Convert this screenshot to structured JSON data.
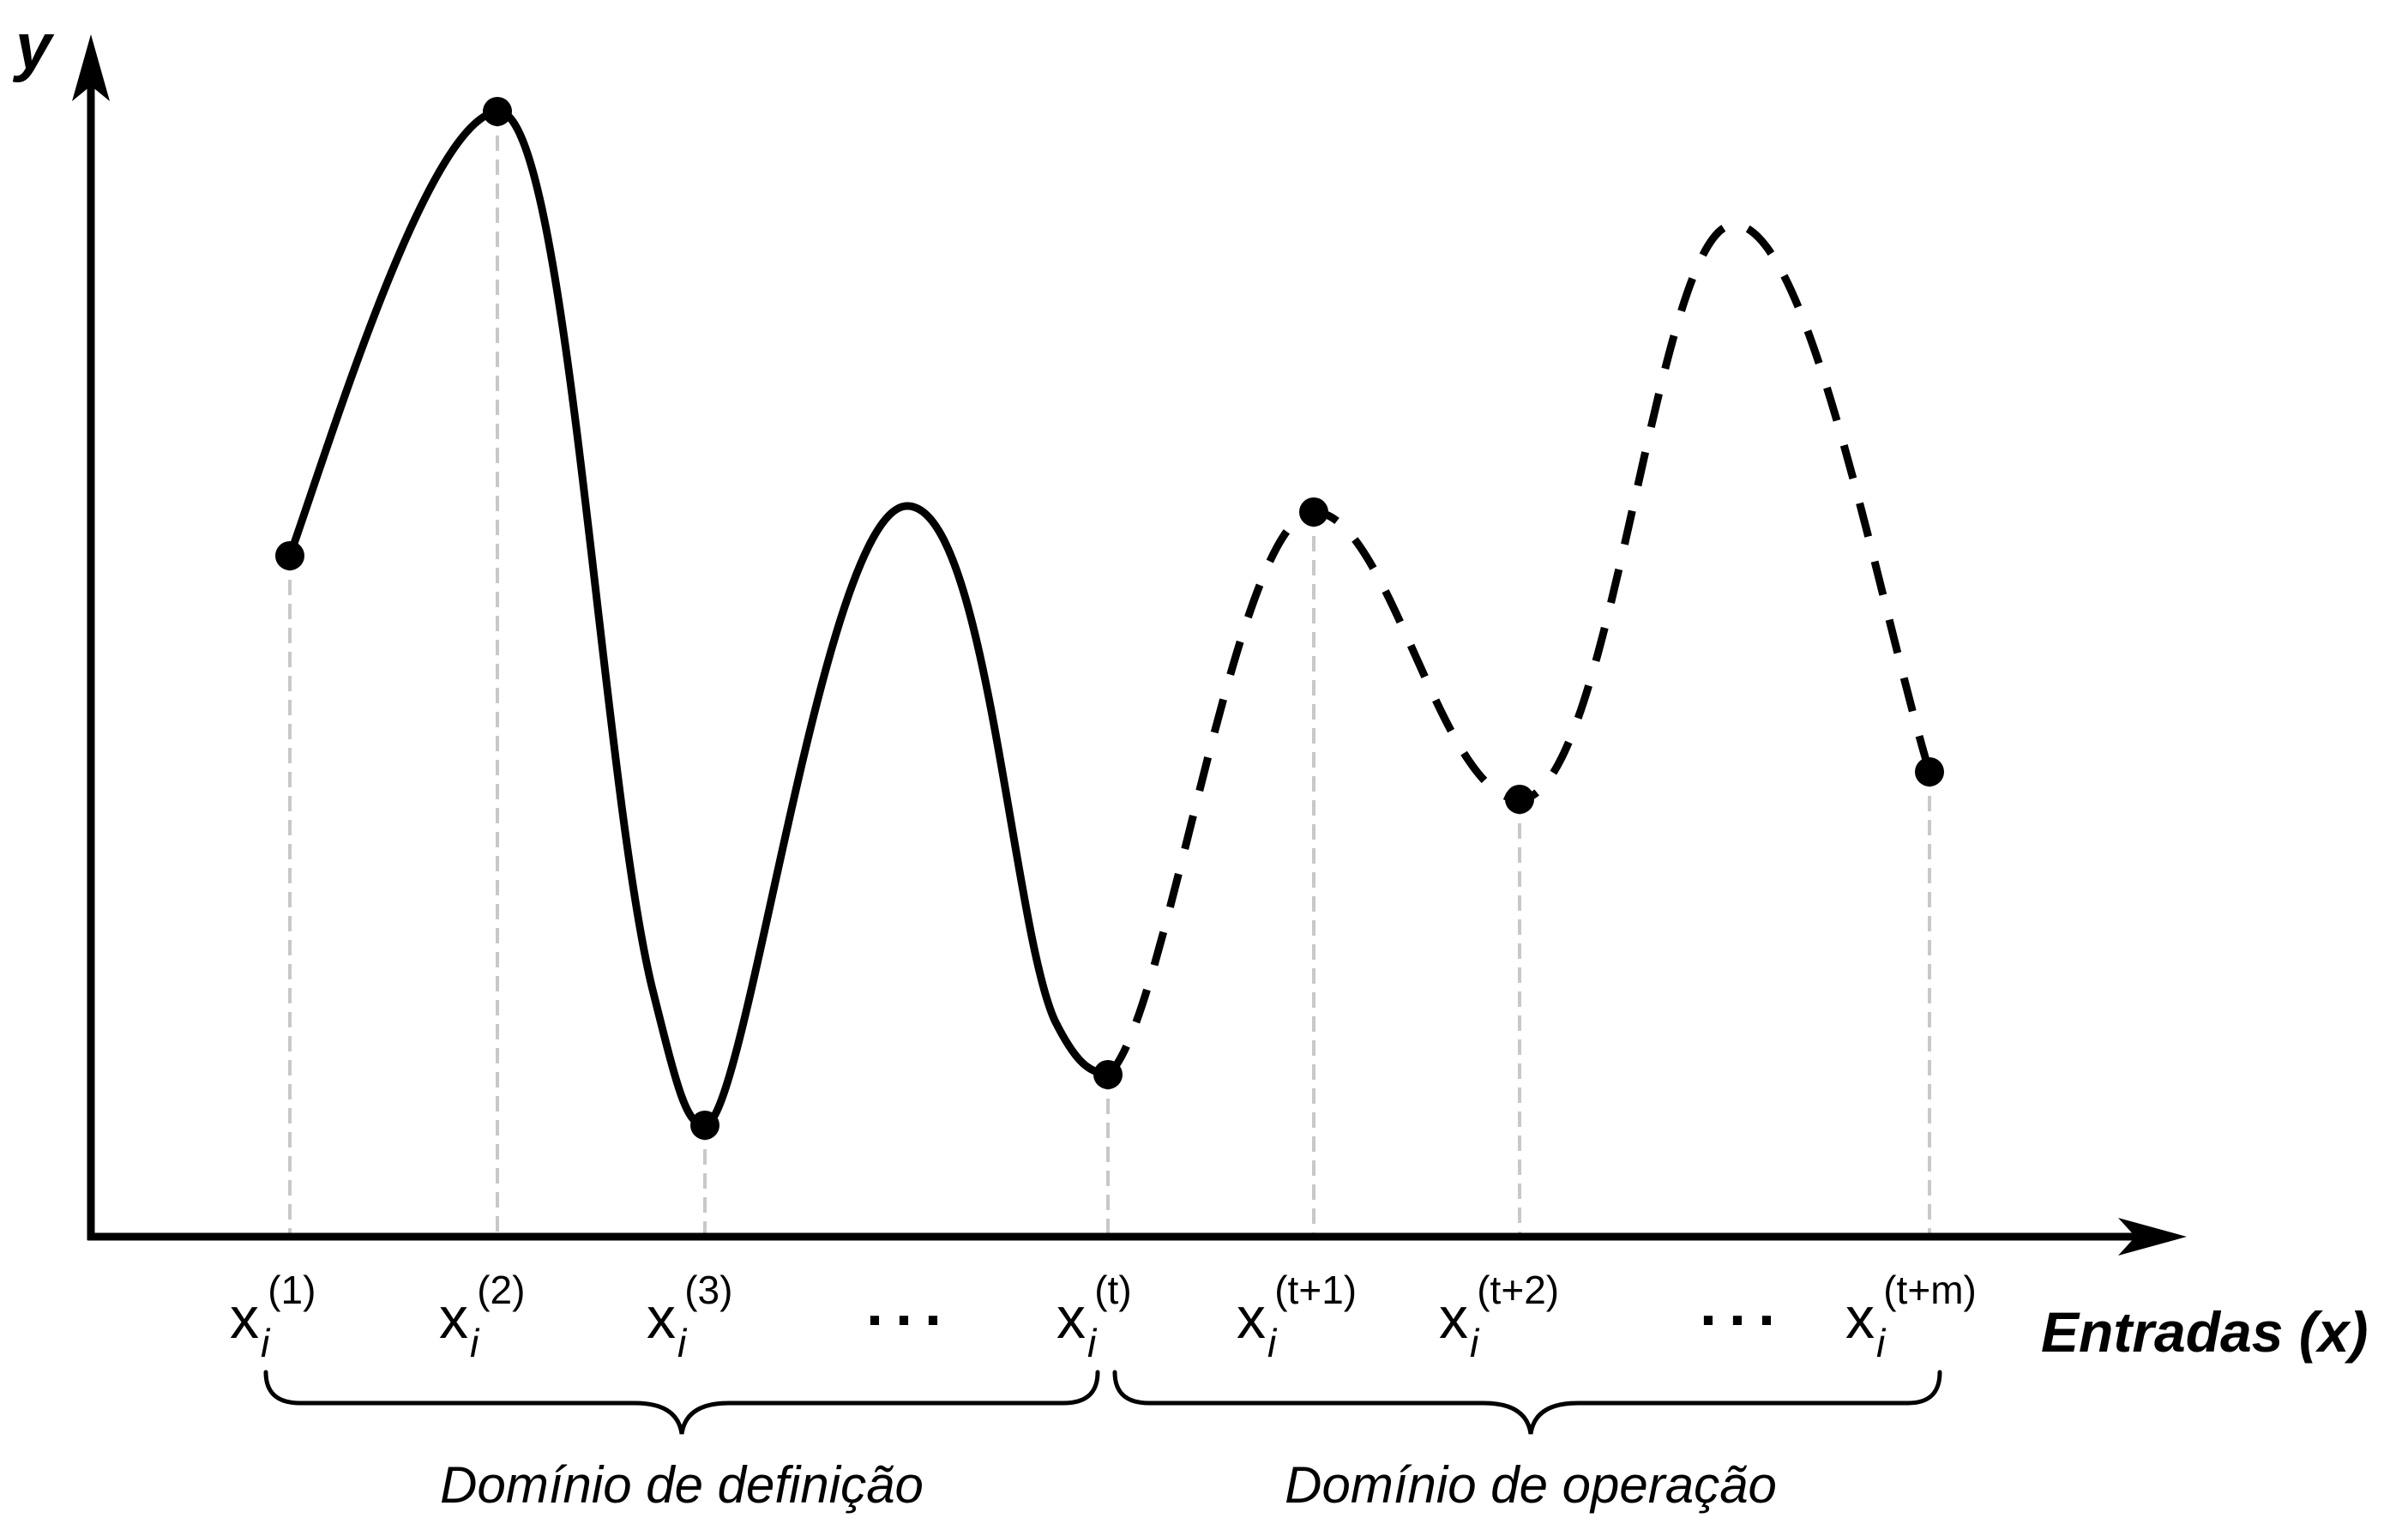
{
  "axes": {
    "y_label": "y",
    "x_label": "Entradas (x)"
  },
  "ticks": [
    {
      "base": "x",
      "sub": "i",
      "sup": "(1)"
    },
    {
      "base": "x",
      "sub": "i",
      "sup": "(2)"
    },
    {
      "base": "x",
      "sub": "i",
      "sup": "(3)"
    },
    {
      "ellipsis": "..."
    },
    {
      "base": "x",
      "sub": "i",
      "sup": "(t)"
    },
    {
      "base": "x",
      "sub": "i",
      "sup": "(t+1)"
    },
    {
      "base": "x",
      "sub": "i",
      "sup": "(t+2)"
    },
    {
      "ellipsis": "..."
    },
    {
      "base": "x",
      "sub": "i",
      "sup": "(t+m)"
    }
  ],
  "domains": {
    "definition_label": "Domínio de definição",
    "operation_label": "Domínio de operação"
  },
  "colors": {
    "curve": "#000000",
    "guide_lines": "#c8c8c8"
  }
}
